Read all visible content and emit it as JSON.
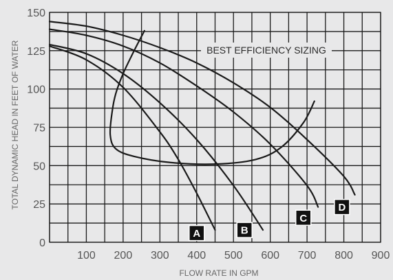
{
  "chart_data": {
    "type": "line",
    "title": "",
    "xlabel": "FLOW RATE IN GPM",
    "ylabel": "TOTAL DYNAMIC HEAD IN FEET OF WATER",
    "xlim": [
      0,
      900
    ],
    "ylim": [
      0,
      150
    ],
    "x_ticks": [
      100,
      200,
      300,
      400,
      500,
      600,
      700,
      800,
      900
    ],
    "y_ticks": [
      0,
      25,
      50,
      75,
      100,
      125,
      150
    ],
    "grid": true,
    "series": [
      {
        "name": "A",
        "x": [
          0,
          100,
          200,
          300,
          350,
          400,
          450
        ],
        "y": [
          128,
          119,
          101,
          72,
          54,
          32,
          8
        ]
      },
      {
        "name": "B",
        "x": [
          0,
          100,
          200,
          300,
          400,
          500,
          580
        ],
        "y": [
          129,
          123,
          110,
          91,
          67,
          37,
          8
        ]
      },
      {
        "name": "C",
        "x": [
          0,
          100,
          200,
          300,
          400,
          500,
          600,
          700,
          730
        ],
        "y": [
          139,
          135,
          128,
          117,
          102,
          85,
          64,
          37,
          23
        ]
      },
      {
        "name": "D",
        "x": [
          0,
          100,
          200,
          300,
          400,
          500,
          600,
          700,
          800,
          830
        ],
        "y": [
          144,
          141,
          135,
          127,
          117,
          104,
          88,
          67,
          43,
          31
        ]
      }
    ],
    "efficiency_envelope": {
      "label": "BEST EFFICIENCY SIZING",
      "x": [
        258,
        230,
        200,
        180,
        170,
        165,
        180,
        230,
        330,
        450,
        560,
        630,
        690,
        720
      ],
      "y": [
        138,
        125,
        110,
        97,
        85,
        70,
        61,
        56,
        52,
        51,
        54,
        62,
        78,
        92
      ]
    },
    "curve_labels": [
      {
        "text": "A",
        "x": 400,
        "y": 6
      },
      {
        "text": "B",
        "x": 530,
        "y": 8
      },
      {
        "text": "C",
        "x": 690,
        "y": 16
      },
      {
        "text": "D",
        "x": 795,
        "y": 23
      }
    ]
  }
}
